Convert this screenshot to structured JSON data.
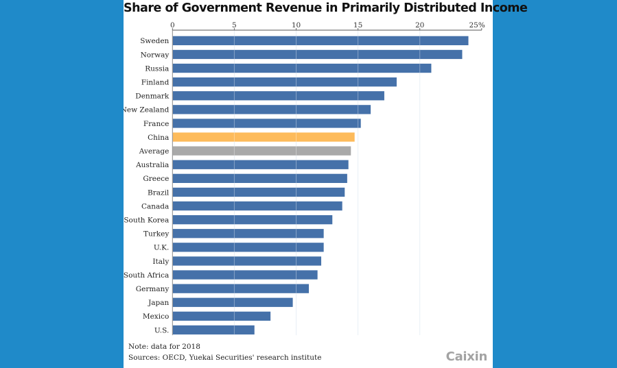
{
  "chart_data": {
    "type": "bar",
    "orientation": "horizontal",
    "title": "Share of Government Revenue in Primarily Distributed Income",
    "xlabel": "",
    "ylabel": "",
    "xlim": [
      0,
      25
    ],
    "x_ticks": [
      0,
      5,
      10,
      15,
      20,
      25
    ],
    "x_tick_labels": [
      "0",
      "5",
      "10",
      "15",
      "20",
      "25%"
    ],
    "grid": true,
    "categories": [
      "Sweden",
      "Norway",
      "Russia",
      "Finland",
      "Denmark",
      "New Zealand",
      "France",
      "China",
      "Average",
      "Australia",
      "Greece",
      "Brazil",
      "Canada",
      "South Korea",
      "Turkey",
      "U.K.",
      "Italy",
      "South Africa",
      "Germany",
      "Japan",
      "Mexico",
      "U.S."
    ],
    "values": [
      23.9,
      23.4,
      20.9,
      18.1,
      17.1,
      16.0,
      15.2,
      14.7,
      14.4,
      14.2,
      14.1,
      13.9,
      13.7,
      12.9,
      12.2,
      12.2,
      12.0,
      11.7,
      11.0,
      9.7,
      7.9,
      6.6
    ],
    "highlight": {
      "China": "#fdbb5b",
      "Average": "#a9a9a9"
    },
    "default_color": "#4571a9",
    "unit": "%"
  },
  "footer": {
    "note": "Note: data for 2018",
    "sources": "Sources: OECD, Yuekai Securities' research institute",
    "logo": "Caixin"
  },
  "colors": {
    "background": "#1f8ac9",
    "panel": "#ffffff"
  }
}
